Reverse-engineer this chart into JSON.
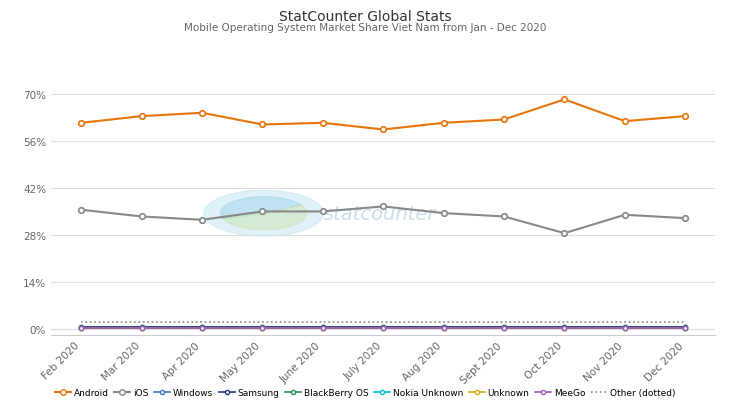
{
  "title": "StatCounter Global Stats",
  "subtitle": "Mobile Operating System Market Share Viet Nam from Jan - Dec 2020",
  "months": [
    "Feb 2020",
    "Mar 2020",
    "Apr 2020",
    "May 2020",
    "June 2020",
    "July 2020",
    "Aug 2020",
    "Sept 2020",
    "Oct 2020",
    "Nov 2020",
    "Dec 2020"
  ],
  "android": [
    61.5,
    63.5,
    64.5,
    61.0,
    61.5,
    59.5,
    61.5,
    62.5,
    68.5,
    62.0,
    63.5
  ],
  "ios": [
    35.5,
    33.5,
    32.5,
    35.0,
    35.0,
    36.5,
    34.5,
    33.5,
    28.5,
    34.0,
    33.0
  ],
  "windows": [
    0.4,
    0.4,
    0.4,
    0.4,
    0.4,
    0.4,
    0.4,
    0.4,
    0.4,
    0.4,
    0.4
  ],
  "samsung": [
    0.6,
    0.6,
    0.6,
    0.6,
    0.6,
    0.6,
    0.6,
    0.6,
    0.6,
    0.6,
    0.6
  ],
  "blackberry": [
    0.15,
    0.15,
    0.15,
    0.15,
    0.15,
    0.15,
    0.15,
    0.15,
    0.15,
    0.15,
    0.15
  ],
  "nokia_unknown": [
    0.1,
    0.1,
    0.1,
    0.1,
    0.1,
    0.1,
    0.1,
    0.1,
    0.1,
    0.1,
    0.1
  ],
  "unknown": [
    0.2,
    0.2,
    0.2,
    0.2,
    0.2,
    0.2,
    0.2,
    0.2,
    0.2,
    0.2,
    0.2
  ],
  "meego": [
    0.05,
    0.05,
    0.05,
    0.05,
    0.05,
    0.05,
    0.05,
    0.05,
    0.05,
    0.05,
    0.05
  ],
  "other": [
    1.8,
    1.8,
    1.8,
    1.8,
    1.8,
    1.8,
    1.8,
    1.8,
    1.8,
    1.8,
    1.8
  ],
  "android_color": "#e8750a",
  "ios_color": "#888888",
  "windows_color": "#4472c4",
  "samsung_color": "#1a3a7a",
  "blackberry_color": "#2e8b57",
  "nokia_color": "#00bcd4",
  "unknown_color": "#d4ac0d",
  "meego_color": "#9b59b6",
  "other_color": "#888888",
  "bg_color": "#ffffff",
  "grid_color": "#dddddd",
  "yticks": [
    0,
    14,
    28,
    42,
    56,
    70
  ],
  "ylim": [
    -2,
    74
  ],
  "title_fontsize": 10,
  "subtitle_fontsize": 7.5
}
